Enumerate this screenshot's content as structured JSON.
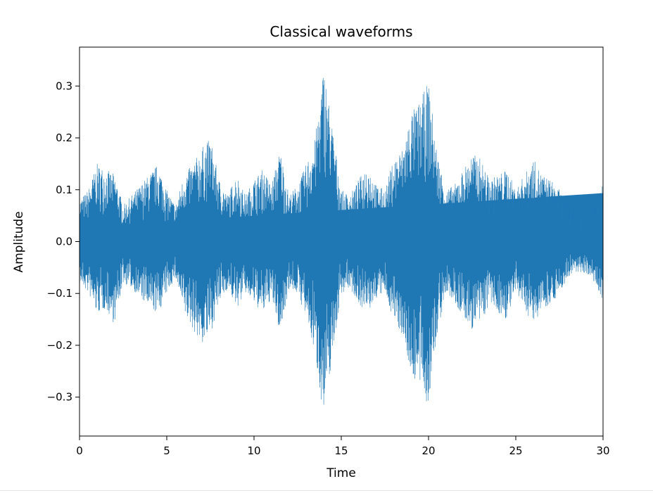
{
  "chart_data": {
    "type": "area",
    "title": "Classical waveforms",
    "xlabel": "Time",
    "ylabel": "Amplitude",
    "xlim": [
      0,
      30
    ],
    "ylim": [
      -0.375,
      0.375
    ],
    "xticks": [
      0,
      5,
      10,
      15,
      20,
      25,
      30
    ],
    "xtick_labels": [
      "0",
      "5",
      "10",
      "15",
      "20",
      "25",
      "30"
    ],
    "yticks": [
      0.3,
      0.2,
      0.1,
      0.0,
      -0.1,
      -0.2,
      -0.3
    ],
    "ytick_labels": [
      "0.3",
      "0.2",
      "0.1",
      "0.0",
      "−0.1",
      "−0.2",
      "−0.3"
    ],
    "grid": false,
    "legend": "none",
    "series_color": "#1f77b4",
    "envelope": {
      "x": [
        0,
        0.5,
        1.0,
        1.5,
        2.0,
        2.5,
        3.0,
        3.5,
        4.0,
        4.5,
        5.0,
        5.5,
        6.0,
        6.5,
        7.0,
        7.5,
        8.0,
        8.5,
        9.0,
        9.5,
        10.0,
        10.5,
        11.0,
        11.5,
        12.0,
        12.5,
        13.0,
        13.5,
        14.0,
        14.5,
        15.0,
        15.5,
        16.0,
        16.5,
        17.0,
        17.5,
        18.0,
        18.5,
        19.0,
        19.5,
        20.0,
        20.5,
        21.0,
        21.5,
        22.0,
        22.5,
        23.0,
        23.5,
        24.0,
        24.5,
        25.0,
        25.5,
        26.0,
        26.5,
        27.0,
        27.5,
        28.0,
        28.5,
        29.0,
        29.5,
        30.0
      ],
      "upper": [
        0.08,
        0.1,
        0.15,
        0.14,
        0.13,
        0.07,
        0.09,
        0.11,
        0.13,
        0.15,
        0.1,
        0.07,
        0.13,
        0.15,
        0.18,
        0.2,
        0.12,
        0.09,
        0.13,
        0.09,
        0.12,
        0.14,
        0.11,
        0.18,
        0.09,
        0.11,
        0.15,
        0.2,
        0.34,
        0.22,
        0.1,
        0.09,
        0.12,
        0.15,
        0.11,
        0.1,
        0.16,
        0.18,
        0.25,
        0.27,
        0.31,
        0.17,
        0.1,
        0.11,
        0.14,
        0.17,
        0.16,
        0.12,
        0.13,
        0.14,
        0.1,
        0.13,
        0.16,
        0.13,
        0.12,
        0.1,
        0.07,
        0.06,
        0.06,
        0.07,
        0.12
      ],
      "lower": [
        -0.08,
        -0.1,
        -0.14,
        -0.13,
        -0.16,
        -0.08,
        -0.09,
        -0.11,
        -0.13,
        -0.14,
        -0.1,
        -0.07,
        -0.14,
        -0.17,
        -0.2,
        -0.18,
        -0.12,
        -0.09,
        -0.13,
        -0.1,
        -0.12,
        -0.14,
        -0.11,
        -0.18,
        -0.09,
        -0.1,
        -0.15,
        -0.22,
        -0.34,
        -0.22,
        -0.1,
        -0.09,
        -0.12,
        -0.14,
        -0.11,
        -0.1,
        -0.15,
        -0.18,
        -0.26,
        -0.28,
        -0.32,
        -0.18,
        -0.1,
        -0.12,
        -0.15,
        -0.17,
        -0.16,
        -0.12,
        -0.14,
        -0.15,
        -0.1,
        -0.13,
        -0.16,
        -0.13,
        -0.12,
        -0.1,
        -0.07,
        -0.06,
        -0.06,
        -0.08,
        -0.13
      ]
    }
  }
}
